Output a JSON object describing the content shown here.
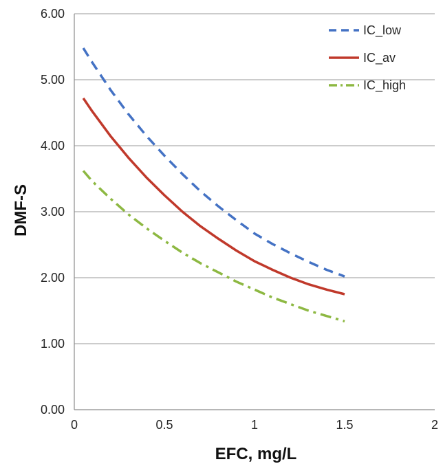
{
  "chart_data": {
    "type": "line",
    "xlabel": "EFC, mg/L",
    "ylabel": "DMF-S",
    "xlim": [
      0,
      2
    ],
    "ylim": [
      0,
      6
    ],
    "x_ticks": [
      "0",
      "0.5",
      "1",
      "1.5",
      "2"
    ],
    "y_ticks": [
      "0.00",
      "1.00",
      "2.00",
      "3.00",
      "4.00",
      "5.00",
      "6.00"
    ],
    "grid": "horizontal",
    "legend_position": "top-right",
    "series": [
      {
        "name": "IC_low",
        "color": "#4472C4",
        "style": "dashed",
        "x": [
          0.05,
          0.1,
          0.2,
          0.3,
          0.4,
          0.5,
          0.6,
          0.7,
          0.8,
          0.9,
          1.0,
          1.1,
          1.2,
          1.3,
          1.4,
          1.5
        ],
        "y": [
          5.48,
          5.26,
          4.85,
          4.48,
          4.15,
          3.85,
          3.57,
          3.31,
          3.08,
          2.87,
          2.67,
          2.51,
          2.37,
          2.24,
          2.12,
          2.02
        ]
      },
      {
        "name": "IC_av",
        "color": "#C0392B",
        "style": "solid",
        "x": [
          0.05,
          0.1,
          0.2,
          0.3,
          0.4,
          0.5,
          0.6,
          0.7,
          0.8,
          0.9,
          1.0,
          1.1,
          1.2,
          1.3,
          1.4,
          1.5
        ],
        "y": [
          4.72,
          4.52,
          4.15,
          3.82,
          3.52,
          3.25,
          3.0,
          2.78,
          2.59,
          2.41,
          2.25,
          2.12,
          2.0,
          1.9,
          1.82,
          1.75
        ]
      },
      {
        "name": "IC_high",
        "color": "#8DB842",
        "style": "dash-dot",
        "x": [
          0.05,
          0.1,
          0.2,
          0.3,
          0.4,
          0.5,
          0.6,
          0.7,
          0.8,
          0.9,
          1.0,
          1.1,
          1.2,
          1.3,
          1.4,
          1.5
        ],
        "y": [
          3.62,
          3.46,
          3.2,
          2.96,
          2.75,
          2.56,
          2.38,
          2.22,
          2.08,
          1.94,
          1.82,
          1.7,
          1.6,
          1.5,
          1.42,
          1.34
        ]
      }
    ]
  }
}
